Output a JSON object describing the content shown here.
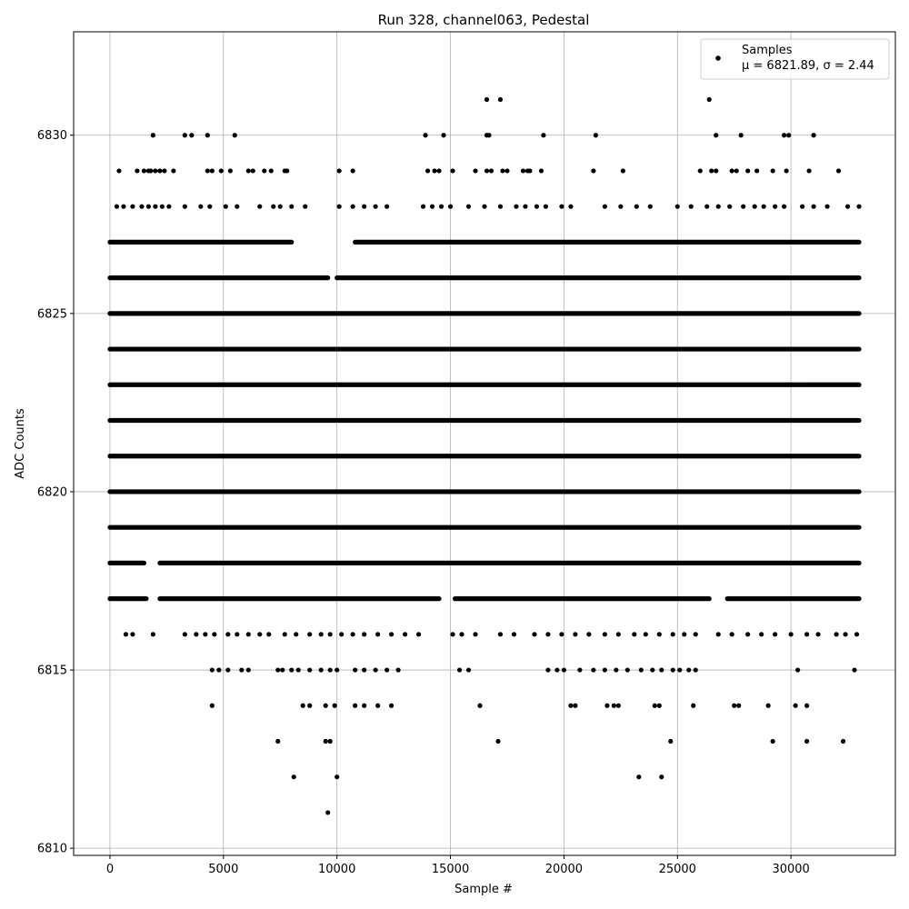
{
  "chart_data": {
    "type": "scatter",
    "title": "Run 328, channel063, Pedestal",
    "xlabel": "Sample #",
    "ylabel": "ADC Counts",
    "xlim": [
      -1600,
      34600
    ],
    "ylim": [
      6809.8,
      6832.9
    ],
    "xticks": [
      0,
      5000,
      10000,
      15000,
      20000,
      25000,
      30000
    ],
    "yticks": [
      6810,
      6815,
      6820,
      6825,
      6830
    ],
    "grid": true,
    "legend_position": "top-right",
    "series": [
      {
        "name": "Samples",
        "legend_stat": "μ = 6821.89, σ = 2.44",
        "color": "#000000",
        "bands": [
          {
            "y": 6819,
            "ranges": [
              [
                0,
                33000
              ]
            ]
          },
          {
            "y": 6820,
            "ranges": [
              [
                0,
                33000
              ]
            ]
          },
          {
            "y": 6821,
            "ranges": [
              [
                0,
                33000
              ]
            ]
          },
          {
            "y": 6822,
            "ranges": [
              [
                0,
                33000
              ]
            ]
          },
          {
            "y": 6823,
            "ranges": [
              [
                0,
                33000
              ]
            ]
          },
          {
            "y": 6824,
            "ranges": [
              [
                0,
                33000
              ]
            ]
          },
          {
            "y": 6825,
            "ranges": [
              [
                0,
                33000
              ]
            ]
          },
          {
            "y": 6826,
            "ranges": [
              [
                0,
                9600
              ],
              [
                10000,
                33000
              ]
            ]
          },
          {
            "y": 6827,
            "ranges": [
              [
                0,
                8000
              ],
              [
                10800,
                33000
              ]
            ]
          },
          {
            "y": 6818,
            "ranges": [
              [
                0,
                1500
              ],
              [
                2200,
                33000
              ]
            ]
          },
          {
            "y": 6817,
            "ranges": [
              [
                0,
                1600
              ],
              [
                2200,
                14500
              ],
              [
                15200,
                26400
              ],
              [
                27200,
                33000
              ]
            ]
          }
        ],
        "points": [
          [
            400,
            6829
          ],
          [
            1200,
            6829
          ],
          [
            1500,
            6829
          ],
          [
            1700,
            6829
          ],
          [
            1800,
            6829
          ],
          [
            2000,
            6829
          ],
          [
            2200,
            6829
          ],
          [
            2400,
            6829
          ],
          [
            2800,
            6829
          ],
          [
            4300,
            6829
          ],
          [
            4500,
            6829
          ],
          [
            4900,
            6829
          ],
          [
            5300,
            6829
          ],
          [
            6100,
            6829
          ],
          [
            6300,
            6829
          ],
          [
            6800,
            6829
          ],
          [
            7100,
            6829
          ],
          [
            7700,
            6829
          ],
          [
            7800,
            6829
          ],
          [
            10100,
            6829
          ],
          [
            10700,
            6829
          ],
          [
            14000,
            6829
          ],
          [
            14300,
            6829
          ],
          [
            14500,
            6829
          ],
          [
            15100,
            6829
          ],
          [
            16100,
            6829
          ],
          [
            16600,
            6829
          ],
          [
            16800,
            6829
          ],
          [
            17300,
            6829
          ],
          [
            17500,
            6829
          ],
          [
            18200,
            6829
          ],
          [
            18400,
            6829
          ],
          [
            18500,
            6829
          ],
          [
            19000,
            6829
          ],
          [
            21300,
            6829
          ],
          [
            22600,
            6829
          ],
          [
            26000,
            6829
          ],
          [
            26500,
            6829
          ],
          [
            26700,
            6829
          ],
          [
            27400,
            6829
          ],
          [
            27600,
            6829
          ],
          [
            28100,
            6829
          ],
          [
            28500,
            6829
          ],
          [
            29200,
            6829
          ],
          [
            29800,
            6829
          ],
          [
            30800,
            6829
          ],
          [
            32100,
            6829
          ],
          [
            1900,
            6830
          ],
          [
            3300,
            6830
          ],
          [
            3600,
            6830
          ],
          [
            4300,
            6830
          ],
          [
            5500,
            6830
          ],
          [
            13900,
            6830
          ],
          [
            14700,
            6830
          ],
          [
            16600,
            6830
          ],
          [
            16700,
            6830
          ],
          [
            19100,
            6830
          ],
          [
            21400,
            6830
          ],
          [
            26700,
            6830
          ],
          [
            27800,
            6830
          ],
          [
            29700,
            6830
          ],
          [
            29900,
            6830
          ],
          [
            31000,
            6830
          ],
          [
            16600,
            6831
          ],
          [
            17200,
            6831
          ],
          [
            26400,
            6831
          ],
          [
            300,
            6828
          ],
          [
            600,
            6828
          ],
          [
            1000,
            6828
          ],
          [
            1400,
            6828
          ],
          [
            1700,
            6828
          ],
          [
            2000,
            6828
          ],
          [
            2300,
            6828
          ],
          [
            2600,
            6828
          ],
          [
            3300,
            6828
          ],
          [
            4000,
            6828
          ],
          [
            4400,
            6828
          ],
          [
            5100,
            6828
          ],
          [
            5600,
            6828
          ],
          [
            6600,
            6828
          ],
          [
            7200,
            6828
          ],
          [
            7500,
            6828
          ],
          [
            8000,
            6828
          ],
          [
            8600,
            6828
          ],
          [
            10100,
            6828
          ],
          [
            10700,
            6828
          ],
          [
            11200,
            6828
          ],
          [
            11700,
            6828
          ],
          [
            12200,
            6828
          ],
          [
            13800,
            6828
          ],
          [
            14200,
            6828
          ],
          [
            14600,
            6828
          ],
          [
            15000,
            6828
          ],
          [
            15800,
            6828
          ],
          [
            16500,
            6828
          ],
          [
            17200,
            6828
          ],
          [
            17900,
            6828
          ],
          [
            18300,
            6828
          ],
          [
            18800,
            6828
          ],
          [
            19200,
            6828
          ],
          [
            19900,
            6828
          ],
          [
            20300,
            6828
          ],
          [
            21800,
            6828
          ],
          [
            22500,
            6828
          ],
          [
            23200,
            6828
          ],
          [
            23800,
            6828
          ],
          [
            25000,
            6828
          ],
          [
            25600,
            6828
          ],
          [
            26300,
            6828
          ],
          [
            26800,
            6828
          ],
          [
            27300,
            6828
          ],
          [
            27900,
            6828
          ],
          [
            28400,
            6828
          ],
          [
            28800,
            6828
          ],
          [
            29300,
            6828
          ],
          [
            29700,
            6828
          ],
          [
            30500,
            6828
          ],
          [
            31000,
            6828
          ],
          [
            31600,
            6828
          ],
          [
            32500,
            6828
          ],
          [
            33000,
            6828
          ],
          [
            700,
            6816
          ],
          [
            1000,
            6816
          ],
          [
            1900,
            6816
          ],
          [
            3300,
            6816
          ],
          [
            3800,
            6816
          ],
          [
            4200,
            6816
          ],
          [
            4600,
            6816
          ],
          [
            5200,
            6816
          ],
          [
            5600,
            6816
          ],
          [
            6100,
            6816
          ],
          [
            6600,
            6816
          ],
          [
            7000,
            6816
          ],
          [
            7700,
            6816
          ],
          [
            8200,
            6816
          ],
          [
            8800,
            6816
          ],
          [
            9300,
            6816
          ],
          [
            9700,
            6816
          ],
          [
            10200,
            6816
          ],
          [
            10700,
            6816
          ],
          [
            11200,
            6816
          ],
          [
            11800,
            6816
          ],
          [
            12400,
            6816
          ],
          [
            13000,
            6816
          ],
          [
            13600,
            6816
          ],
          [
            15100,
            6816
          ],
          [
            15500,
            6816
          ],
          [
            16100,
            6816
          ],
          [
            17200,
            6816
          ],
          [
            17800,
            6816
          ],
          [
            18700,
            6816
          ],
          [
            19300,
            6816
          ],
          [
            19900,
            6816
          ],
          [
            20500,
            6816
          ],
          [
            21100,
            6816
          ],
          [
            21800,
            6816
          ],
          [
            22400,
            6816
          ],
          [
            23100,
            6816
          ],
          [
            23600,
            6816
          ],
          [
            24200,
            6816
          ],
          [
            24800,
            6816
          ],
          [
            25300,
            6816
          ],
          [
            25800,
            6816
          ],
          [
            26800,
            6816
          ],
          [
            27400,
            6816
          ],
          [
            28100,
            6816
          ],
          [
            28700,
            6816
          ],
          [
            29300,
            6816
          ],
          [
            30000,
            6816
          ],
          [
            30700,
            6816
          ],
          [
            31200,
            6816
          ],
          [
            32000,
            6816
          ],
          [
            32400,
            6816
          ],
          [
            32900,
            6816
          ],
          [
            4500,
            6815
          ],
          [
            4800,
            6815
          ],
          [
            5200,
            6815
          ],
          [
            5800,
            6815
          ],
          [
            6100,
            6815
          ],
          [
            7400,
            6815
          ],
          [
            7600,
            6815
          ],
          [
            8000,
            6815
          ],
          [
            8300,
            6815
          ],
          [
            8800,
            6815
          ],
          [
            9300,
            6815
          ],
          [
            9700,
            6815
          ],
          [
            10000,
            6815
          ],
          [
            10800,
            6815
          ],
          [
            11200,
            6815
          ],
          [
            11700,
            6815
          ],
          [
            12200,
            6815
          ],
          [
            12700,
            6815
          ],
          [
            15400,
            6815
          ],
          [
            15800,
            6815
          ],
          [
            19300,
            6815
          ],
          [
            19700,
            6815
          ],
          [
            20000,
            6815
          ],
          [
            20700,
            6815
          ],
          [
            21300,
            6815
          ],
          [
            21800,
            6815
          ],
          [
            22300,
            6815
          ],
          [
            22800,
            6815
          ],
          [
            23400,
            6815
          ],
          [
            23900,
            6815
          ],
          [
            24300,
            6815
          ],
          [
            24800,
            6815
          ],
          [
            25100,
            6815
          ],
          [
            25500,
            6815
          ],
          [
            25800,
            6815
          ],
          [
            30300,
            6815
          ],
          [
            32800,
            6815
          ],
          [
            4500,
            6814
          ],
          [
            8500,
            6814
          ],
          [
            8800,
            6814
          ],
          [
            9500,
            6814
          ],
          [
            9900,
            6814
          ],
          [
            10800,
            6814
          ],
          [
            11200,
            6814
          ],
          [
            11800,
            6814
          ],
          [
            12400,
            6814
          ],
          [
            16300,
            6814
          ],
          [
            20300,
            6814
          ],
          [
            20500,
            6814
          ],
          [
            21900,
            6814
          ],
          [
            22200,
            6814
          ],
          [
            22400,
            6814
          ],
          [
            24000,
            6814
          ],
          [
            24200,
            6814
          ],
          [
            25700,
            6814
          ],
          [
            27500,
            6814
          ],
          [
            27700,
            6814
          ],
          [
            29000,
            6814
          ],
          [
            30200,
            6814
          ],
          [
            30700,
            6814
          ],
          [
            7400,
            6813
          ],
          [
            9500,
            6813
          ],
          [
            9700,
            6813
          ],
          [
            17100,
            6813
          ],
          [
            24700,
            6813
          ],
          [
            29200,
            6813
          ],
          [
            30700,
            6813
          ],
          [
            32300,
            6813
          ],
          [
            8100,
            6812
          ],
          [
            10000,
            6812
          ],
          [
            23300,
            6812
          ],
          [
            24300,
            6812
          ],
          [
            9600,
            6811
          ]
        ]
      }
    ]
  }
}
